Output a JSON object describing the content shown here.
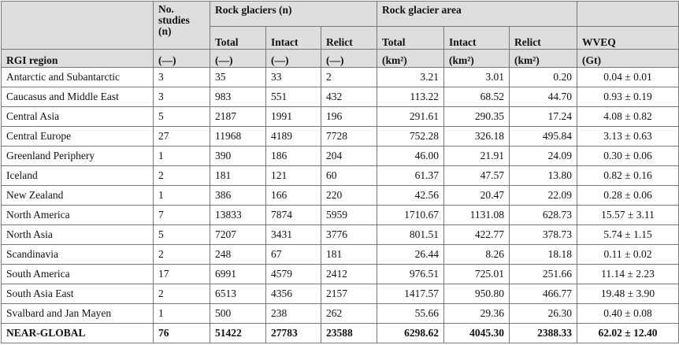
{
  "table": {
    "header": {
      "no_studies": "No. studies (n)",
      "rock_glaciers": "Rock glaciers (n)",
      "rock_glacier_area": "Rock glacier area",
      "subheaders": [
        "Total",
        "Intact",
        "Relict",
        "Total",
        "Intact",
        "Relict",
        "WVEQ"
      ],
      "region": "RGI region",
      "units": [
        "(—)",
        "(—)",
        "(—)",
        "(—)",
        "(km²)",
        "(km²)",
        "(km²)",
        "(Gt)"
      ]
    },
    "rows": [
      [
        "Antarctic and Subantarctic",
        "3",
        "35",
        "33",
        "2",
        "3.21",
        "3.01",
        "0.20",
        "0.04 ± 0.01"
      ],
      [
        "Caucasus and Middle East",
        "3",
        "983",
        "551",
        "432",
        "113.22",
        "68.52",
        "44.70",
        "0.93 ± 0.19"
      ],
      [
        "Central Asia",
        "5",
        "2187",
        "1991",
        "196",
        "291.61",
        "290.35",
        "17.24",
        "4.08 ± 0.82"
      ],
      [
        "Central Europe",
        "27",
        "11968",
        "4189",
        "7728",
        "752.28",
        "326.18",
        "495.84",
        "3.13 ± 0.63"
      ],
      [
        "Greenland Periphery",
        "1",
        "390",
        "186",
        "204",
        "46.00",
        "21.91",
        "24.09",
        "0.30 ± 0.06"
      ],
      [
        "Iceland",
        "2",
        "181",
        "121",
        "60",
        "61.37",
        "47.57",
        "13.80",
        "0.82 ± 0.16"
      ],
      [
        "New Zealand",
        "1",
        "386",
        "166",
        "220",
        "42.56",
        "20.47",
        "22.09",
        "0.28 ± 0.06"
      ],
      [
        "North America",
        "7",
        "13833",
        "7874",
        "5959",
        "1710.67",
        "1131.08",
        "628.73",
        "15.57 ± 3.11"
      ],
      [
        "North Asia",
        "5",
        "7207",
        "3431",
        "3776",
        "801.51",
        "422.77",
        "378.73",
        "5.74 ± 1.15"
      ],
      [
        "Scandinavia",
        "2",
        "248",
        "67",
        "181",
        "26.44",
        "8.26",
        "18.18",
        "0.11 ± 0.02"
      ],
      [
        "South America",
        "17",
        "6991",
        "4579",
        "2412",
        "976.51",
        "725.01",
        "251.66",
        "11.14 ± 2.23"
      ],
      [
        "South Asia East",
        "2",
        "6513",
        "4356",
        "2157",
        "1417.57",
        "950.80",
        "466.77",
        "19.48 ± 3.90"
      ],
      [
        "Svalbard and Jan Mayen",
        "1",
        "500",
        "238",
        "262",
        "55.66",
        "29.36",
        "26.30",
        "0.40 ± 0.08"
      ],
      [
        "NEAR-GLOBAL",
        "76",
        "51422",
        "27783",
        "23588",
        "6298.62",
        "4045.30",
        "2388.33",
        "62.02 ± 12.40"
      ]
    ]
  }
}
